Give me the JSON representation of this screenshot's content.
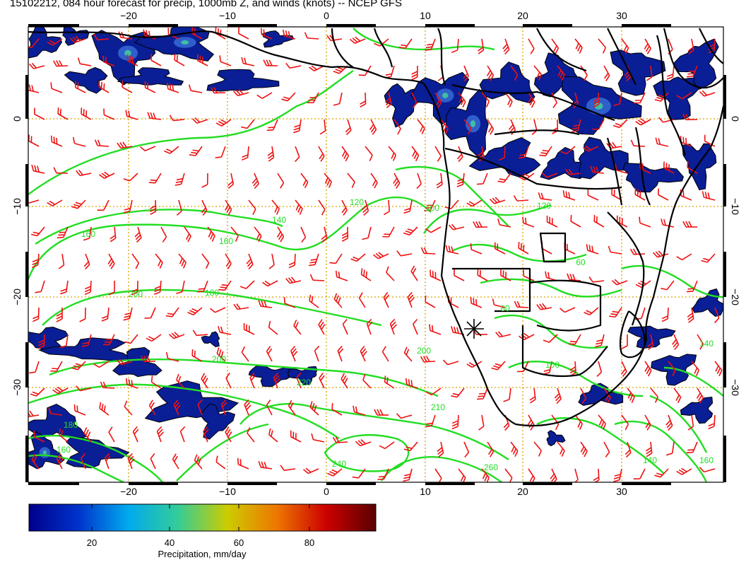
{
  "title": "15102212, 084 hour forecast for precip, 1000mb Z, and winds (knots) -- NCEP GFS",
  "map": {
    "lon_ticks": [
      "-20",
      "-10",
      "0",
      "10",
      "20",
      "30"
    ],
    "lat_ticks": [
      "0",
      "-10",
      "-20",
      "-30"
    ],
    "contour_labels": [
      "120",
      "140",
      "160",
      "160",
      "180",
      "200",
      "200",
      "220",
      "240",
      "260",
      "210",
      "200",
      "160",
      "140",
      "100",
      "100",
      "80",
      "60",
      "120",
      "140",
      "160",
      "180"
    ],
    "colors": {
      "contour": "#22dd22",
      "barb": "#ee1111",
      "coast": "#000000",
      "grid": "#d9a300",
      "precip": "#0a1e96"
    }
  },
  "colorbar": {
    "ticks": [
      "20",
      "40",
      "60",
      "80"
    ],
    "label": "Precipitation, mm/day",
    "colors": [
      "#00008b",
      "#0033cc",
      "#00aaee",
      "#33cc99",
      "#cccc00",
      "#ee7700",
      "#cc0000",
      "#5a0000"
    ]
  }
}
